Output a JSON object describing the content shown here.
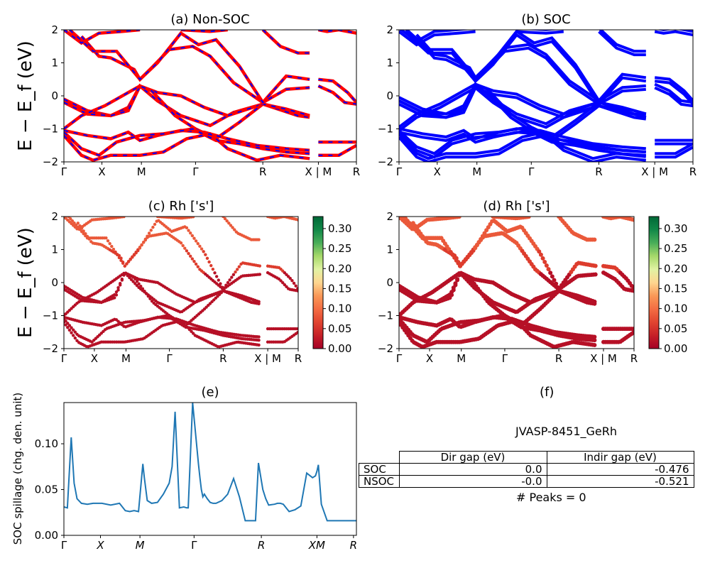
{
  "chart_data": [
    {
      "type": "line",
      "title": "(a) Non-SOC",
      "ylabel": "E − E_f (eV)",
      "ylim": [
        -2,
        2
      ],
      "yticks": [
        "−2",
        "−1",
        "0",
        "1",
        "2"
      ],
      "xticks": [
        "Γ",
        "X",
        "M",
        "Γ",
        "R",
        "X | M",
        "R"
      ],
      "style": "red bands with blue dashed overlay"
    },
    {
      "type": "line",
      "title": "(b) SOC",
      "ylim": [
        -2,
        2
      ],
      "yticks": [
        "−2",
        "−1",
        "0",
        "1",
        "2"
      ],
      "xticks": [
        "Γ",
        "X",
        "M",
        "Γ",
        "R",
        "X | M",
        "R"
      ],
      "style": "blue spin-split bands"
    },
    {
      "type": "scatter",
      "title": "(c)  Rh ['s']",
      "ylabel": "E − E_f (eV)",
      "ylim": [
        -2,
        2
      ],
      "yticks": [
        "−2",
        "−1",
        "0",
        "1",
        "2"
      ],
      "xticks": [
        "Γ",
        "X",
        "M",
        "Γ",
        "R",
        "X | M",
        "R"
      ],
      "colorbar_ticks": [
        "0.00",
        "0.05",
        "0.10",
        "0.15",
        "0.20",
        "0.25",
        "0.30"
      ],
      "colorbar_range": [
        0,
        0.33
      ]
    },
    {
      "type": "scatter",
      "title": "(d) Rh ['s']",
      "ylim": [
        -2,
        2
      ],
      "yticks": [
        "−2",
        "−1",
        "0",
        "1",
        "2"
      ],
      "xticks": [
        "Γ",
        "X",
        "M",
        "Γ",
        "R",
        "X | M",
        "R"
      ],
      "colorbar_ticks": [
        "0.00",
        "0.05",
        "0.10",
        "0.15",
        "0.20",
        "0.25",
        "0.30"
      ],
      "colorbar_range": [
        0,
        0.33
      ]
    },
    {
      "type": "line",
      "title": "(e)",
      "ylabel": "SOC spillage (chg. den. unit)",
      "ylim": [
        0,
        0.145
      ],
      "yticks": [
        "0.00",
        "0.05",
        "0.10"
      ],
      "xticks": [
        "Γ",
        "X",
        "M",
        "Γ",
        "R",
        "XM",
        "R"
      ],
      "series": [
        {
          "x": [
            0,
            0.012,
            0.025,
            0.035,
            0.045,
            0.06,
            0.08,
            0.1,
            0.13,
            0.16,
            0.19,
            0.21,
            0.225,
            0.24,
            0.255,
            0.27,
            0.275,
            0.285,
            0.3,
            0.32,
            0.34,
            0.36,
            0.37,
            0.38,
            0.395,
            0.41,
            0.42,
            0.425,
            0.44,
            0.46,
            0.465,
            0.47,
            0.475,
            0.48,
            0.49,
            0.5,
            0.51,
            0.52,
            0.54,
            0.56,
            0.58,
            0.6,
            0.62,
            0.63,
            0.645,
            0.655,
            0.665,
            0.68,
            0.69,
            0.7,
            0.72,
            0.73,
            0.735,
            0.74,
            0.75,
            0.77,
            0.79,
            0.81,
            0.83,
            0.85,
            0.86,
            0.865,
            0.87,
            0.88,
            0.9,
            0.915,
            0.92,
            0.93,
            0.935,
            0.95,
            0.965,
            0.975,
            0.985,
            1.0
          ],
          "values": [
            0.031,
            0.03,
            0.107,
            0.057,
            0.04,
            0.035,
            0.034,
            0.035,
            0.035,
            0.033,
            0.035,
            0.027,
            0.026,
            0.027,
            0.026,
            0.078,
            0.063,
            0.038,
            0.035,
            0.036,
            0.045,
            0.057,
            0.075,
            0.135,
            0.03,
            0.031,
            0.03,
            0.03,
            0.145,
            0.078,
            0.063,
            0.05,
            0.042,
            0.045,
            0.04,
            0.036,
            0.035,
            0.035,
            0.038,
            0.045,
            0.062,
            0.042,
            0.016,
            0.016,
            0.016,
            0.016,
            0.079,
            0.05,
            0.04,
            0.033,
            0.034,
            0.035,
            0.035,
            0.035,
            0.034,
            0.026,
            0.028,
            0.032,
            0.068,
            0.063,
            0.065,
            0.07,
            0.077,
            0.034,
            0.016,
            0.016,
            0.016,
            0.016,
            0.016,
            0.016,
            0.016,
            0.016,
            0.016,
            0.016
          ]
        }
      ]
    }
  ],
  "panel_f": {
    "title": "(f)",
    "name": "JVASP-8451_GeRh",
    "headers": [
      "Dir gap (eV)",
      "Indir gap (eV)"
    ],
    "rows": [
      {
        "label": "SOC",
        "dir": "0.0",
        "indir": "-0.476"
      },
      {
        "label": "NSOC",
        "dir": "-0.0",
        "indir": "-0.521"
      }
    ],
    "peaks": "# Peaks = 0"
  },
  "colors": {
    "red": "#ff0000",
    "blue": "#0000ff",
    "line": "#1f77b4"
  }
}
